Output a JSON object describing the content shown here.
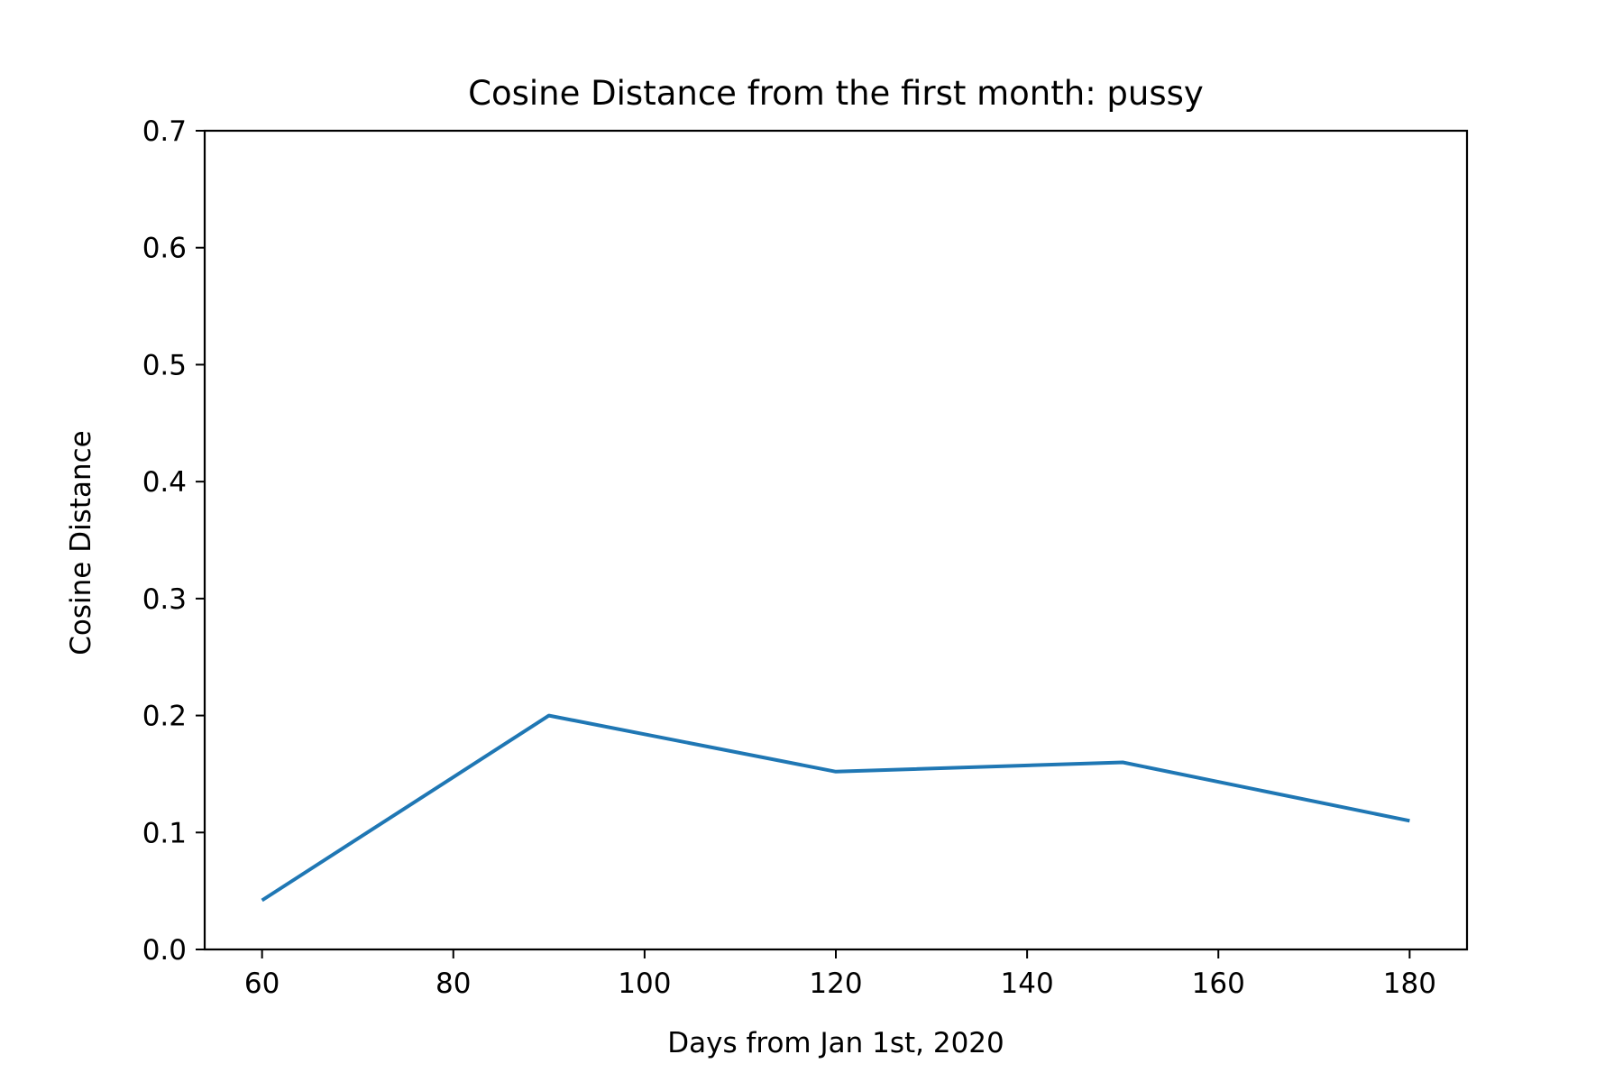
{
  "chart_data": {
    "type": "line",
    "title": "Cosine Distance from the first month: pussy",
    "xlabel": "Days from Jan 1st, 2020",
    "ylabel": "Cosine Distance",
    "xlim": [
      54,
      186
    ],
    "ylim": [
      0,
      0.7
    ],
    "x_ticks": [
      60,
      80,
      100,
      120,
      140,
      160,
      180
    ],
    "y_ticks": [
      0.0,
      0.1,
      0.2,
      0.3,
      0.4,
      0.5,
      0.6,
      0.7
    ],
    "x_tick_labels": [
      "60",
      "80",
      "100",
      "120",
      "140",
      "160",
      "180"
    ],
    "y_tick_labels": [
      "0.0",
      "0.1",
      "0.2",
      "0.3",
      "0.4",
      "0.5",
      "0.6",
      "0.7"
    ],
    "grid": false,
    "series": [
      {
        "color": "#1f77b4",
        "x": [
          60,
          90,
          120,
          150,
          180
        ],
        "y": [
          0.042,
          0.2,
          0.152,
          0.16,
          0.11
        ]
      }
    ]
  }
}
